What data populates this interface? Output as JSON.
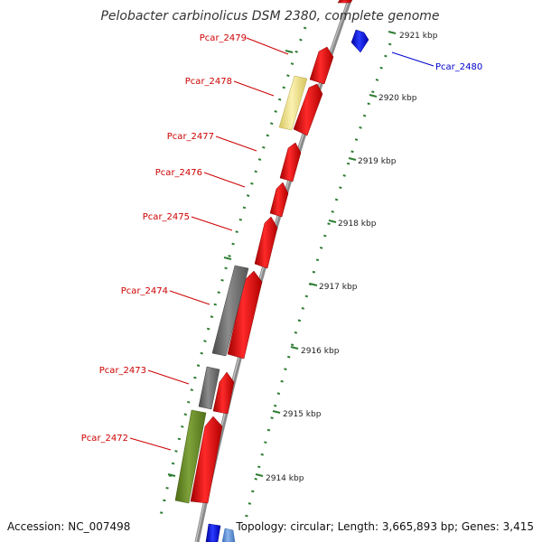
{
  "title": "Pelobacter carbinolicus DSM 2380, complete genome",
  "accession": "Accession: NC_007498",
  "topology": "Topology: circular; Length: 3,665,893 bp; Genes: 3,415",
  "colors": {
    "forward_gene": "#ff0000",
    "reverse_gene": "#0000ff",
    "pseudo_gray": "#707070",
    "pale_yellow": "#f2e58c",
    "olive": "#6b8e23",
    "light_blue": "#5b8fd6",
    "backbone": "#8a8a8a",
    "tick": "#2e7d32",
    "forward_label": "#cc0000",
    "reverse_label": "#0000cc"
  },
  "tick_labels": [
    "2921 kbp",
    "2920 kbp",
    "2919 kbp",
    "2918 kbp",
    "2917 kbp",
    "2916 kbp",
    "2915 kbp",
    "2914 kbp"
  ],
  "gene_labels": [
    {
      "id": "Pcar_2479",
      "strand": "forward"
    },
    {
      "id": "Pcar_2478",
      "strand": "forward"
    },
    {
      "id": "Pcar_2477",
      "strand": "forward"
    },
    {
      "id": "Pcar_2476",
      "strand": "forward"
    },
    {
      "id": "Pcar_2475",
      "strand": "forward"
    },
    {
      "id": "Pcar_2474",
      "strand": "forward"
    },
    {
      "id": "Pcar_2473",
      "strand": "forward"
    },
    {
      "id": "Pcar_2472",
      "strand": "forward"
    },
    {
      "id": "Pcar_2480",
      "strand": "reverse"
    }
  ]
}
